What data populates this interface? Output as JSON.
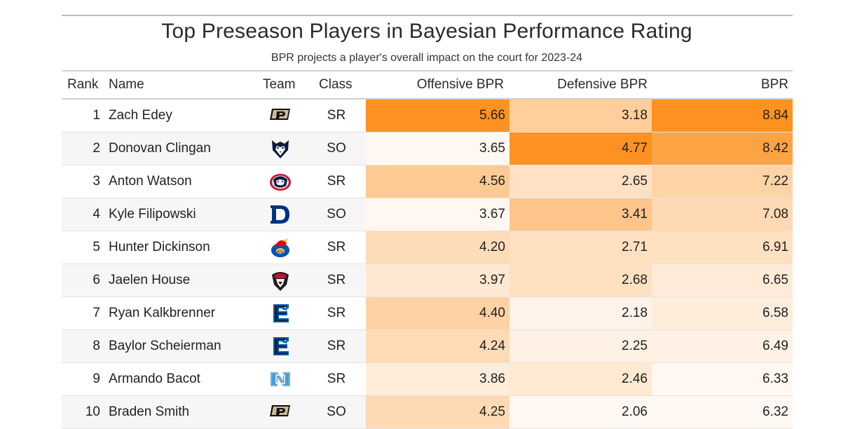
{
  "title": "Top Preseason Players in Bayesian Performance Rating",
  "subtitle": "BPR projects a player's overall impact on the court for 2023-24",
  "columns": {
    "rank": "Rank",
    "name": "Name",
    "team": "Team",
    "class": "Class",
    "off": "Offensive BPR",
    "def": "Defensive BPR",
    "bpr": "BPR"
  },
  "chart_data": {
    "type": "table",
    "title": "Top Preseason Players in Bayesian Performance Rating",
    "subtitle": "BPR projects a player's overall impact on the court for 2023-24",
    "columns": [
      "Rank",
      "Name",
      "Team",
      "Class",
      "Offensive BPR",
      "Defensive BPR",
      "BPR"
    ],
    "colors": {
      "heat_low": "#fff8f2",
      "heat_high": "#fd9221"
    },
    "rows": [
      {
        "rank": "1",
        "name": "Zach Edey",
        "team_icon": "purdue-logo-icon",
        "class": "SR",
        "off": "5.66",
        "def": "3.18",
        "bpr": "8.84"
      },
      {
        "rank": "2",
        "name": "Donovan Clingan",
        "team_icon": "uconn-logo-icon",
        "class": "SO",
        "off": "3.65",
        "def": "4.77",
        "bpr": "8.42"
      },
      {
        "rank": "3",
        "name": "Anton Watson",
        "team_icon": "gonzaga-logo-icon",
        "class": "SR",
        "off": "4.56",
        "def": "2.65",
        "bpr": "7.22"
      },
      {
        "rank": "4",
        "name": "Kyle Filipowski",
        "team_icon": "duke-logo-icon",
        "class": "SO",
        "off": "3.67",
        "def": "3.41",
        "bpr": "7.08"
      },
      {
        "rank": "5",
        "name": "Hunter Dickinson",
        "team_icon": "kansas-logo-icon",
        "class": "SR",
        "off": "4.20",
        "def": "2.71",
        "bpr": "6.91"
      },
      {
        "rank": "6",
        "name": "Jaelen House",
        "team_icon": "new-mexico-logo-icon",
        "class": "SR",
        "off": "3.97",
        "def": "2.68",
        "bpr": "6.65"
      },
      {
        "rank": "7",
        "name": "Ryan Kalkbrenner",
        "team_icon": "creighton-logo-icon",
        "class": "SR",
        "off": "4.40",
        "def": "2.18",
        "bpr": "6.58"
      },
      {
        "rank": "8",
        "name": "Baylor Scheierman",
        "team_icon": "creighton-logo-icon",
        "class": "SR",
        "off": "4.24",
        "def": "2.25",
        "bpr": "6.49"
      },
      {
        "rank": "9",
        "name": "Armando Bacot",
        "team_icon": "unc-logo-icon",
        "class": "SR",
        "off": "3.86",
        "def": "2.46",
        "bpr": "6.33"
      },
      {
        "rank": "10",
        "name": "Braden Smith",
        "team_icon": "purdue-logo-icon",
        "class": "SO",
        "off": "4.25",
        "def": "2.06",
        "bpr": "6.32"
      }
    ]
  }
}
